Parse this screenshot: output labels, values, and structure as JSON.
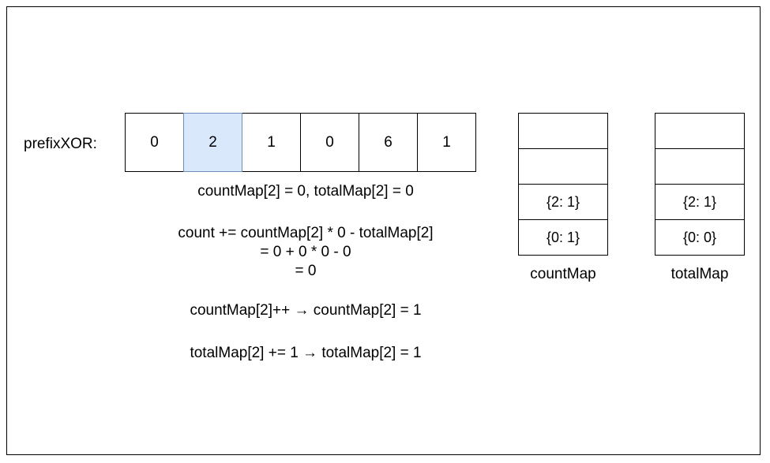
{
  "array_label": "prefixXOR:",
  "prefix_xor": [
    "0",
    "2",
    "1",
    "0",
    "6",
    "1"
  ],
  "highlight_index": 1,
  "colors": {
    "highlight_fill": "#dae8fc",
    "highlight_border": "#6c8ebf",
    "stroke": "#000000"
  },
  "annotations": {
    "line1": "countMap[2] = 0, totalMap[2] = 0",
    "line2": "count += countMap[2] * 0 - totalMap[2]",
    "line3": "= 0 + 0 * 0 - 0",
    "line4": "= 0",
    "line5": "countMap[2]++ → countMap[2] = 1",
    "line6": "totalMap[2] += 1 → totalMap[2] = 1"
  },
  "count_map": {
    "name": "countMap",
    "rows": [
      "",
      "",
      "{2: 1}",
      "{0: 1}"
    ]
  },
  "total_map": {
    "name": "totalMap",
    "rows": [
      "",
      "",
      "{2: 1}",
      "{0: 0}"
    ]
  }
}
